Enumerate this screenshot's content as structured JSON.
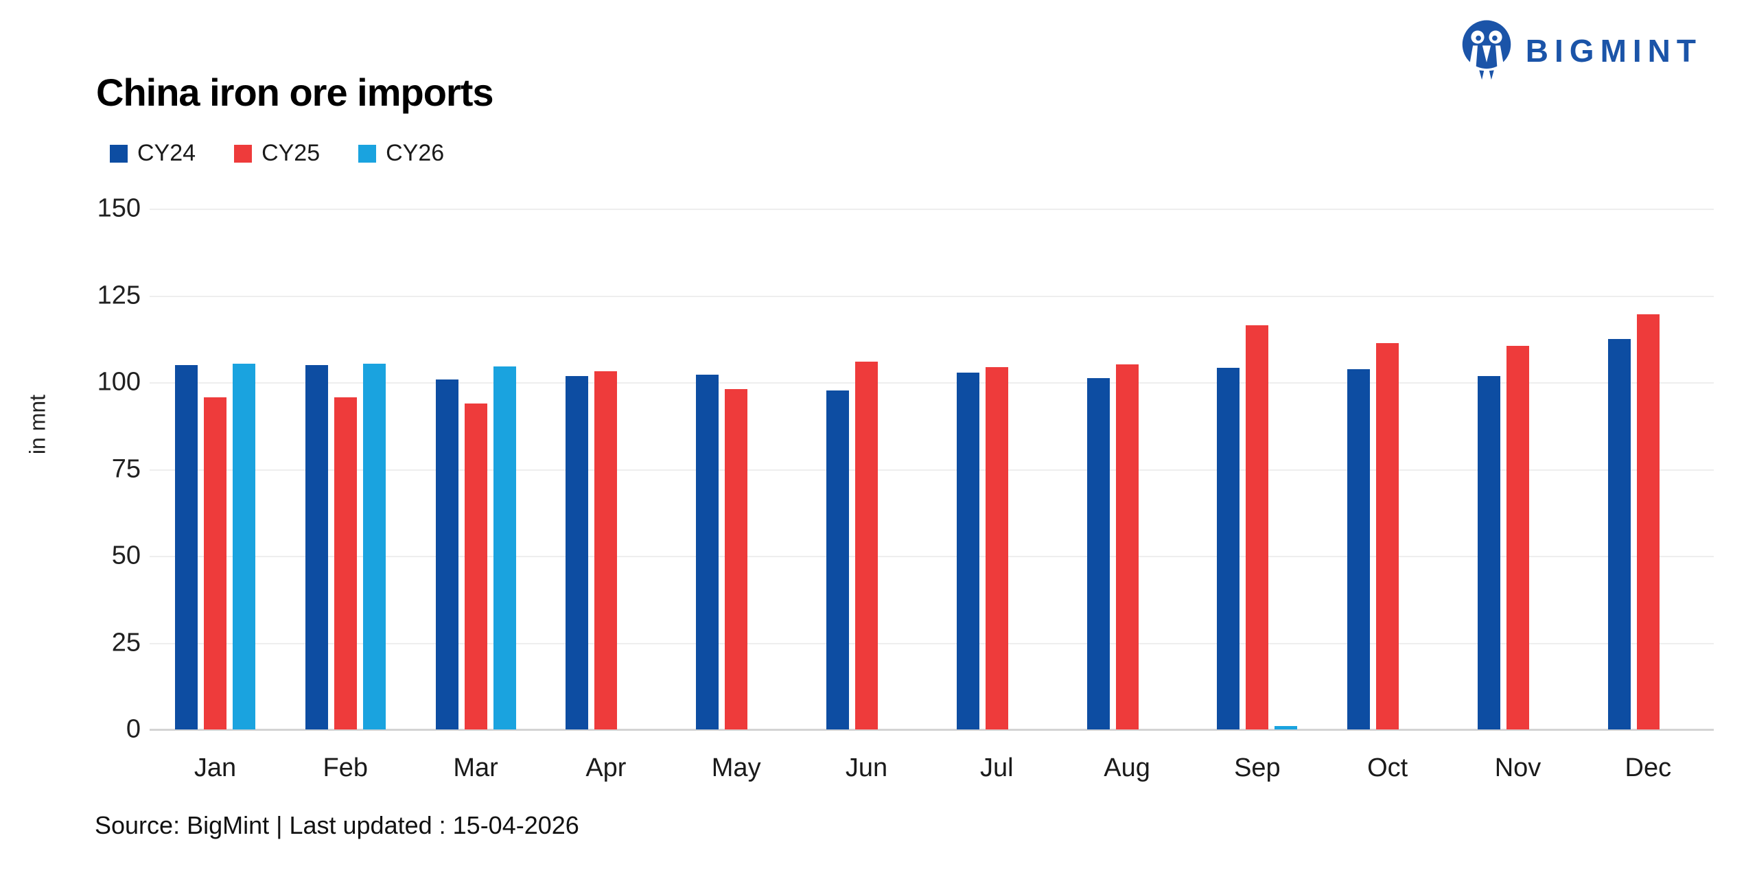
{
  "logo": {
    "brand": "BIGMINT",
    "color": "#1b54a8"
  },
  "source_note": "Source: BigMint | Last updated : 15-04-2026",
  "chart_data": {
    "type": "bar",
    "title": "China iron ore imports",
    "ylabel": "in mnt",
    "ylim": [
      0,
      150
    ],
    "yticks": [
      0,
      25,
      50,
      75,
      100,
      125,
      150
    ],
    "grid": true,
    "legend_position": "top-left",
    "categories": [
      "Jan",
      "Feb",
      "Mar",
      "Apr",
      "May",
      "Jun",
      "Jul",
      "Aug",
      "Sep",
      "Oct",
      "Nov",
      "Dec"
    ],
    "series": [
      {
        "name": "CY24",
        "color": "#0d4da2",
        "values": [
          104.9,
          104.9,
          100.7,
          101.8,
          102.1,
          97.6,
          102.8,
          101.1,
          104.2,
          103.8,
          101.8,
          112.5
        ]
      },
      {
        "name": "CY25",
        "color": "#ee3b3b",
        "values": [
          95.6,
          95.6,
          93.9,
          103.2,
          98.1,
          105.9,
          104.3,
          105.2,
          116.4,
          111.3,
          110.5,
          119.6
        ]
      },
      {
        "name": "CY26",
        "color": "#1aa3df",
        "values": [
          105.3,
          105.3,
          104.6,
          null,
          null,
          null,
          null,
          null,
          1.0,
          null,
          null,
          null
        ]
      }
    ]
  }
}
